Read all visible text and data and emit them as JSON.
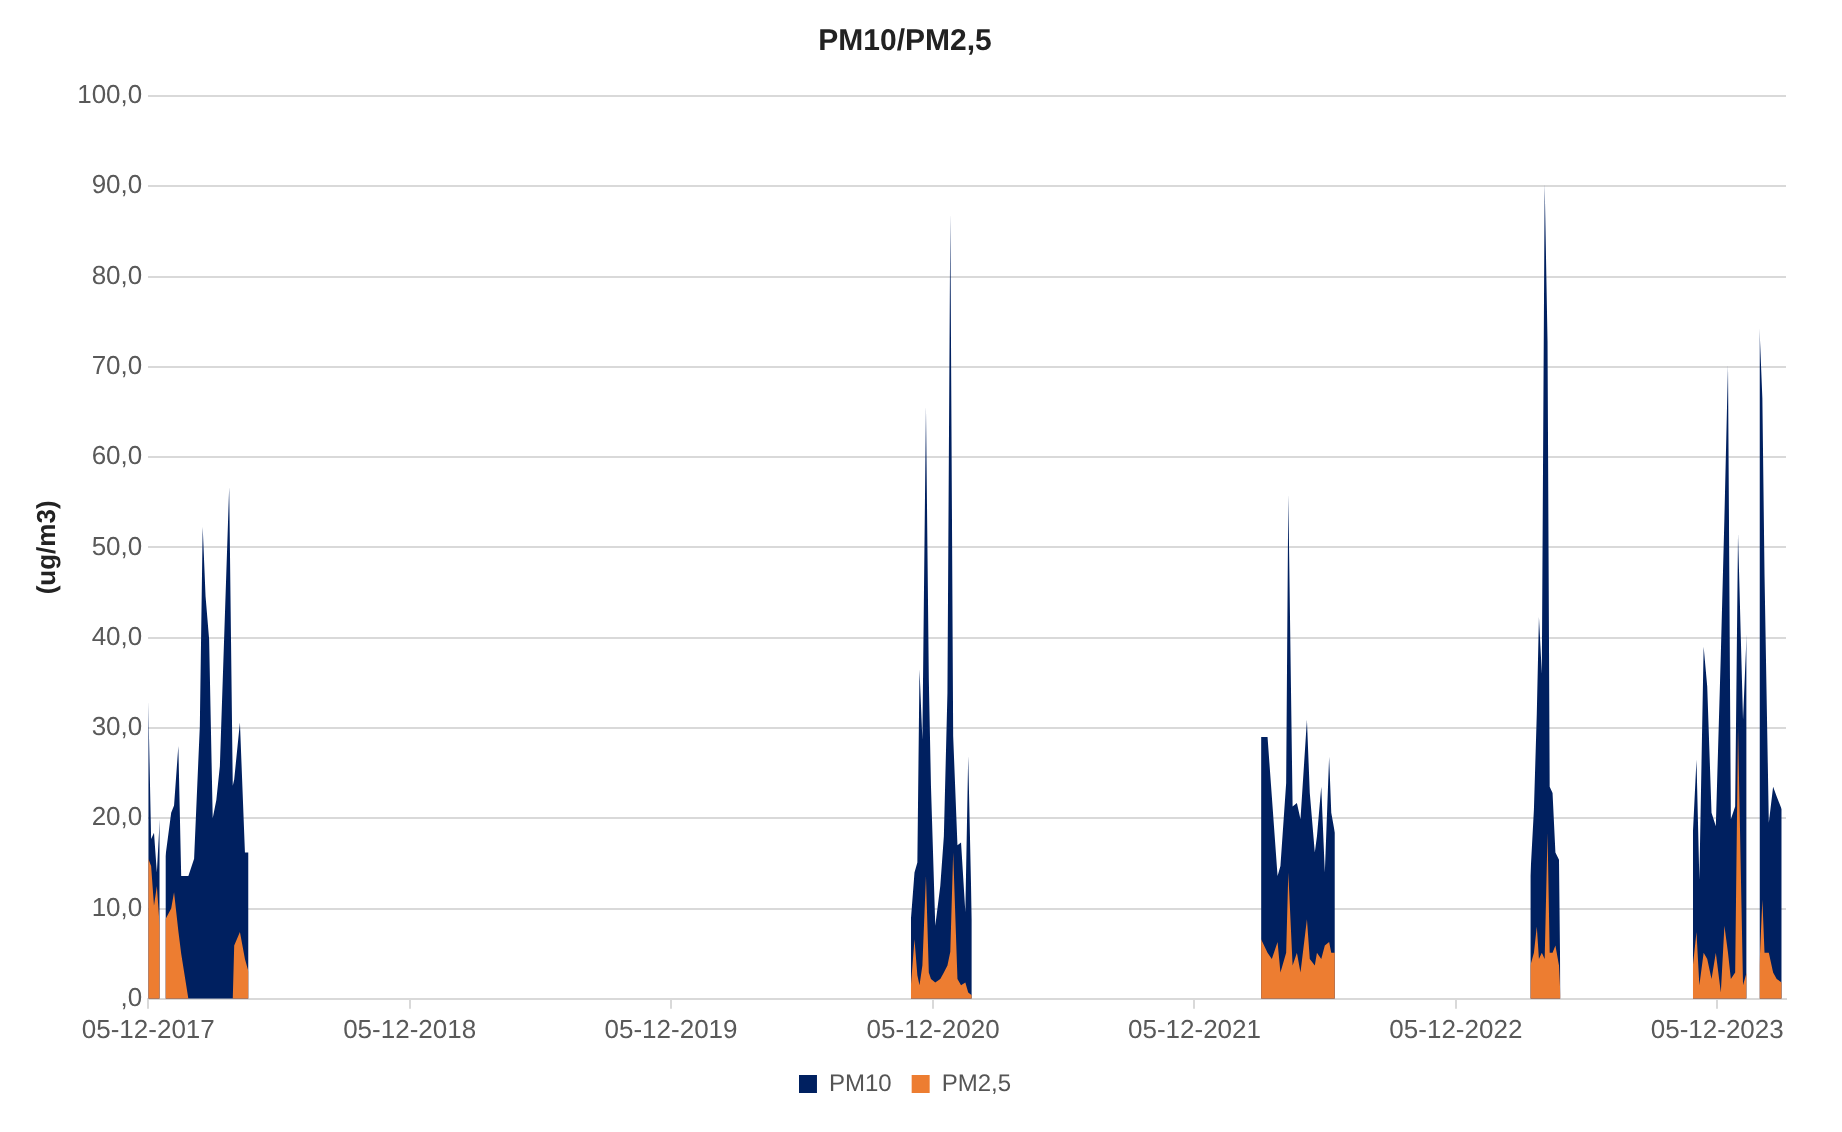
{
  "chart_data": {
    "type": "area",
    "title": "PM10/PM2,5",
    "ylabel": "(ug/m3)",
    "x": [
      "2017-12-05",
      "2017-12-09",
      "2017-12-13",
      "2017-12-17",
      "2017-12-21",
      "2017-12-25",
      "2017-12-29",
      "2018-01-06",
      "2018-01-10",
      "2018-01-16",
      "2018-01-20",
      "2018-01-30",
      "2018-02-07",
      "2018-02-15",
      "2018-02-19",
      "2018-02-23",
      "2018-02-28",
      "2018-03-05",
      "2018-03-10",
      "2018-03-15",
      "2018-03-28",
      "2018-04-02",
      "2018-04-04",
      "2018-04-12",
      "2018-04-19",
      "2018-04-24",
      "2019-06-01",
      "2020-11-04",
      "2020-11-09",
      "2020-11-13",
      "2020-11-16",
      "2020-11-20",
      "2020-11-25",
      "2020-11-29",
      "2020-12-02",
      "2020-12-08",
      "2020-12-15",
      "2020-12-20",
      "2020-12-25",
      "2020-12-29",
      "2021-01-02",
      "2021-01-08",
      "2021-01-13",
      "2021-01-19",
      "2021-01-23",
      "2021-01-28",
      "2021-08-01",
      "2022-03-08",
      "2022-03-17",
      "2022-03-23",
      "2022-03-31",
      "2022-04-04",
      "2022-04-12",
      "2022-04-15",
      "2022-04-21",
      "2022-04-27",
      "2022-05-02",
      "2022-05-11",
      "2022-05-15",
      "2022-05-22",
      "2022-05-25",
      "2022-05-31",
      "2022-06-05",
      "2022-06-11",
      "2022-06-14",
      "2022-06-19",
      "2022-11-01",
      "2023-03-19",
      "2023-03-24",
      "2023-03-28",
      "2023-03-31",
      "2023-04-04",
      "2023-04-08",
      "2023-04-12",
      "2023-04-15",
      "2023-04-19",
      "2023-04-23",
      "2023-04-28",
      "2023-04-30",
      "2023-07-01",
      "2023-11-01",
      "2023-11-06",
      "2023-11-10",
      "2023-11-16",
      "2023-11-21",
      "2023-11-27",
      "2023-12-03",
      "2023-12-10",
      "2023-12-15",
      "2023-12-20",
      "2023-12-24",
      "2023-12-30",
      "2024-01-03",
      "2024-01-10",
      "2024-01-15",
      "2024-01-20",
      "2024-02-02",
      "2024-02-06",
      "2024-02-09",
      "2024-02-15",
      "2024-02-21",
      "2024-02-26",
      "2024-03-04"
    ],
    "series": [
      {
        "name": "PM10",
        "color": "#002060",
        "values": [
          33,
          17.7,
          18.4,
          14,
          19.9,
          null,
          15.8,
          20.6,
          21.4,
          28,
          13.6,
          13.6,
          15.5,
          30.2,
          52.3,
          44.6,
          39.8,
          20,
          22,
          25.8,
          56.7,
          23.6,
          24.3,
          30.6,
          16.2,
          16.2,
          null,
          8.8,
          14,
          15.1,
          36.5,
          28.7,
          65.6,
          35.4,
          23.6,
          8.1,
          12.5,
          18,
          33.9,
          87,
          29.1,
          17,
          17.3,
          9.6,
          26.9,
          8.8,
          null,
          29,
          29,
          22.4,
          13.6,
          14.7,
          23.9,
          55.9,
          21.3,
          21.7,
          19.9,
          30.9,
          22.8,
          16.2,
          18,
          23.5,
          14,
          26.8,
          20.6,
          18.4,
          null,
          13.6,
          21,
          31.6,
          42.3,
          36,
          90.3,
          72.8,
          23.5,
          22.8,
          16.2,
          15.4,
          0.7,
          null,
          18.4,
          26.5,
          13.2,
          39,
          34.6,
          20.6,
          19.1,
          38.2,
          53.3,
          70.2,
          19.9,
          21.3,
          51.5,
          30.9,
          40.4,
          null,
          74.3,
          66.5,
          47,
          19.5,
          23.5,
          22.4,
          21
        ]
      },
      {
        "name": "PM2,5",
        "color": "#ed7d31",
        "values": [
          15.5,
          14.7,
          10.3,
          12.5,
          8,
          null,
          8.8,
          10,
          11.8,
          7.5,
          5,
          0,
          0,
          0,
          0,
          0,
          0,
          0,
          0,
          0,
          0,
          0,
          5.9,
          7.4,
          4.4,
          3,
          null,
          1.5,
          6.6,
          2.6,
          1.5,
          3.7,
          13.6,
          2.9,
          2.2,
          1.8,
          2.2,
          2.9,
          3.7,
          5.2,
          16.2,
          2.2,
          1.5,
          1.8,
          0.7,
          0.4,
          null,
          6.6,
          5.1,
          4.4,
          6.3,
          2.9,
          5.1,
          14,
          3.7,
          5.1,
          2.9,
          8.8,
          4.4,
          3.7,
          5.1,
          4.4,
          5.9,
          6.3,
          5.1,
          5.1,
          null,
          3.7,
          5.1,
          8,
          4.4,
          5.1,
          4.4,
          18.4,
          5.1,
          5.1,
          5.9,
          3.7,
          0.4,
          null,
          3.7,
          7.4,
          1.5,
          5.1,
          4.4,
          2.2,
          5.1,
          0.7,
          8.1,
          5.1,
          2.2,
          2.9,
          30,
          1.5,
          2.9,
          null,
          3.7,
          11,
          5.1,
          5.1,
          2.9,
          2.2,
          1.8
        ]
      }
    ],
    "xlim": [
      "2017-12-05",
      "2024-03-10"
    ],
    "xticks": [
      {
        "value": "2017-12-05",
        "label": "05-12-2017"
      },
      {
        "value": "2018-12-05",
        "label": "05-12-2018"
      },
      {
        "value": "2019-12-05",
        "label": "05-12-2019"
      },
      {
        "value": "2020-12-05",
        "label": "05-12-2020"
      },
      {
        "value": "2021-12-05",
        "label": "05-12-2021"
      },
      {
        "value": "2022-12-05",
        "label": "05-12-2022"
      },
      {
        "value": "2023-12-05",
        "label": "05-12-2023"
      }
    ],
    "ylim": [
      0,
      100
    ],
    "yticks": [
      {
        "value": 0,
        "label": ",0"
      },
      {
        "value": 10,
        "label": "10,0"
      },
      {
        "value": 20,
        "label": "20,0"
      },
      {
        "value": 30,
        "label": "30,0"
      },
      {
        "value": 40,
        "label": "40,0"
      },
      {
        "value": 50,
        "label": "50,0"
      },
      {
        "value": 60,
        "label": "60,0"
      },
      {
        "value": 70,
        "label": "70,0"
      },
      {
        "value": 80,
        "label": "80,0"
      },
      {
        "value": 90,
        "label": "90,0"
      },
      {
        "value": 100,
        "label": "100,0"
      }
    ],
    "grid": "y",
    "legend": "bottom"
  }
}
